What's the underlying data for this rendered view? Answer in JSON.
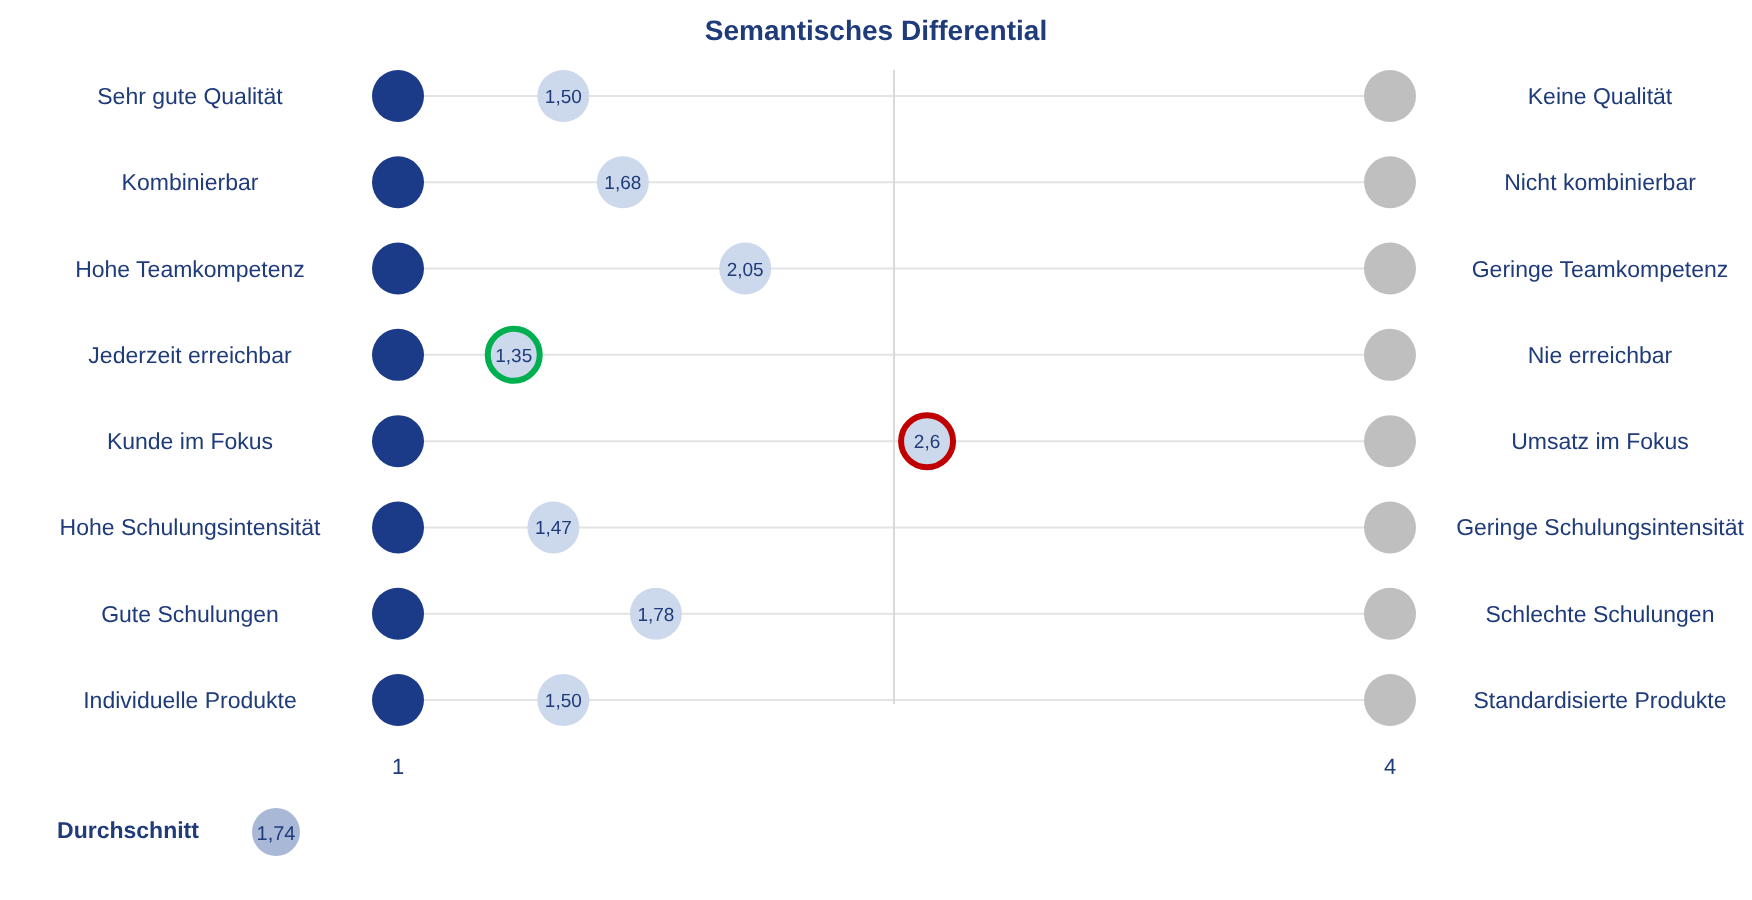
{
  "chart_data": {
    "type": "scatter",
    "orientation": "horizontal",
    "title": "Semantisches Differential",
    "categories": [
      "Sehr gute Qualität",
      "Kombinierbar",
      "Hohe Teamkompetenz",
      "Jederzeit erreichbar",
      "Kunde im Fokus",
      "Hohe Schulungsintensität",
      "Gute Schulungen",
      "Individuelle Produkte"
    ],
    "y2_categories": [
      "Keine Qualität",
      "Nicht kombinierbar",
      "Geringe Teamkompetenz",
      "Nie erreichbar",
      "Umsatz im Fokus",
      "Geringe Schulungsintensität",
      "Schlechte Schulungen",
      "Standardisierte Produkte"
    ],
    "series": [
      {
        "color": "#1b3a87",
        "values": [
          1,
          1,
          1,
          1,
          1,
          1,
          1,
          1
        ]
      },
      {
        "color": "#bfbfbf",
        "values": [
          4,
          4,
          4,
          4,
          4,
          4,
          4,
          4
        ]
      },
      {
        "color": "#ccd8eb",
        "values": [
          1.5,
          1.68,
          2.05,
          1.35,
          2.6,
          1.47,
          1.78,
          1.5
        ],
        "value_labels": [
          "1,50",
          "1,68",
          "2,05",
          "1,35",
          "2,6",
          "1,47",
          "1,78",
          "1,50"
        ]
      },
      {
        "color": "#00b050",
        "marker": "circle",
        "values": [
          null,
          null,
          null,
          1.35,
          null,
          null,
          null,
          null
        ]
      },
      {
        "color": "#c00000",
        "marker": "circle",
        "values": [
          null,
          null,
          null,
          null,
          2.6,
          null,
          null,
          null
        ]
      }
    ],
    "xlim": [
      1,
      4
    ],
    "xticks": [
      1,
      4
    ],
    "grid": "y",
    "marker": "circle",
    "ref_lines": [
      {
        "axis": "x",
        "value": 2.5,
        "color": "#d9d9d9"
      }
    ],
    "annotations": [
      "Durchschnitt",
      "1,74"
    ]
  }
}
